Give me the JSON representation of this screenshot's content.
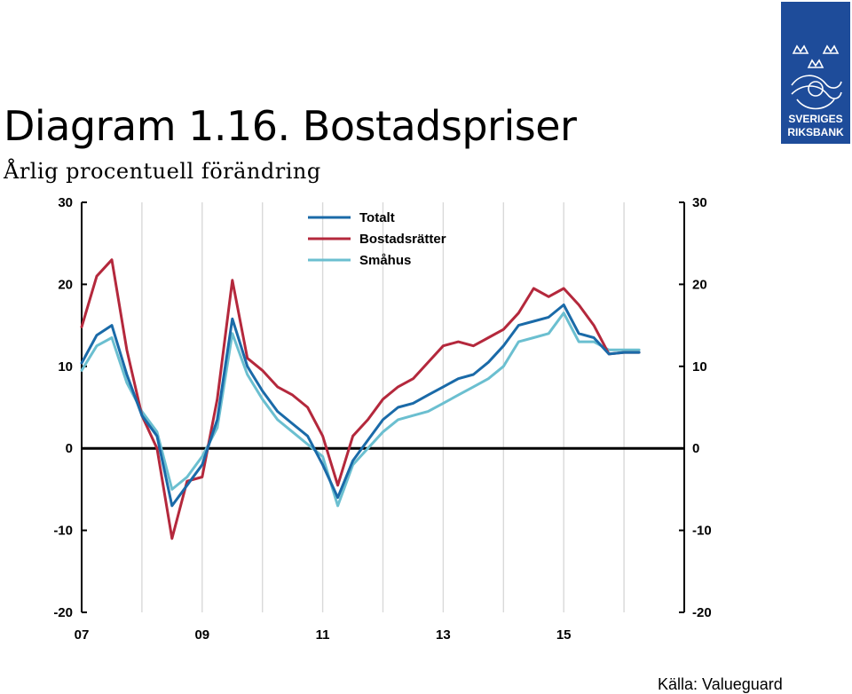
{
  "header": {
    "title": "Diagram 1.16. Bostadspriser",
    "subtitle": "Årlig procentuell förändring"
  },
  "logo": {
    "line1": "SVERIGES",
    "line2": "RIKSBANK",
    "color": "#1e4c9a"
  },
  "source": "Källa: Valueguard",
  "chart_data": {
    "type": "line",
    "xlim": [
      2007,
      2017
    ],
    "ylim": [
      -20,
      30
    ],
    "x_ticks": [
      {
        "value": 2007,
        "label": "07"
      },
      {
        "value": 2009,
        "label": "09"
      },
      {
        "value": 2011,
        "label": "11"
      },
      {
        "value": 2013,
        "label": "13"
      },
      {
        "value": 2015,
        "label": "15"
      }
    ],
    "y_ticks_left": [
      "30",
      "20",
      "10",
      "0",
      "-10",
      "-20"
    ],
    "y_ticks_right": [
      "30",
      "20",
      "10",
      "0",
      "-10",
      "-20"
    ],
    "y_tick_values": [
      30,
      20,
      10,
      0,
      -10,
      -20
    ],
    "grid": "vertical",
    "legend_position": "top-center",
    "series": [
      {
        "name": "Totalt",
        "color": "#1a6aa8",
        "x": [
          2007.0,
          2007.25,
          2007.5,
          2007.75,
          2008.0,
          2008.25,
          2008.5,
          2008.75,
          2009.0,
          2009.25,
          2009.5,
          2009.75,
          2010.0,
          2010.25,
          2010.5,
          2010.75,
          2011.0,
          2011.25,
          2011.5,
          2011.75,
          2012.0,
          2012.25,
          2012.5,
          2012.75,
          2013.0,
          2013.25,
          2013.5,
          2013.75,
          2014.0,
          2014.25,
          2014.5,
          2014.75,
          2015.0,
          2015.25,
          2015.5,
          2015.75,
          2016.0,
          2016.25
        ],
        "values": [
          10.4,
          13.8,
          15.0,
          9.0,
          4.0,
          1.5,
          -7.0,
          -4.5,
          -2.0,
          3.5,
          15.8,
          10.0,
          7.0,
          4.5,
          3.0,
          1.5,
          -2.0,
          -6.0,
          -1.5,
          1.0,
          3.5,
          5.0,
          5.5,
          6.5,
          7.5,
          8.5,
          9.0,
          10.5,
          12.5,
          15.0,
          15.5,
          16.0,
          17.5,
          14.0,
          13.5,
          11.5,
          11.7,
          11.7
        ]
      },
      {
        "name": "Bostadsrätter",
        "color": "#b4283c",
        "x": [
          2007.0,
          2007.25,
          2007.5,
          2007.75,
          2008.0,
          2008.25,
          2008.5,
          2008.75,
          2009.0,
          2009.25,
          2009.5,
          2009.75,
          2010.0,
          2010.25,
          2010.5,
          2010.75,
          2011.0,
          2011.25,
          2011.5,
          2011.75,
          2012.0,
          2012.25,
          2012.5,
          2012.75,
          2013.0,
          2013.25,
          2013.5,
          2013.75,
          2014.0,
          2014.25,
          2014.5,
          2014.75,
          2015.0,
          2015.25,
          2015.5,
          2015.75,
          2016.0,
          2016.25
        ],
        "values": [
          14.8,
          21.0,
          23.0,
          12.0,
          4.0,
          0.0,
          -11.0,
          -4.0,
          -3.5,
          6.0,
          20.5,
          11.0,
          9.5,
          7.5,
          6.5,
          5.0,
          1.5,
          -4.5,
          1.5,
          3.5,
          6.0,
          7.5,
          8.5,
          10.5,
          12.5,
          13.0,
          12.5,
          13.5,
          14.5,
          16.5,
          19.5,
          18.5,
          19.5,
          17.5,
          15.0,
          11.5,
          11.7,
          11.7
        ]
      },
      {
        "name": "Småhus",
        "color": "#6bbfd0",
        "x": [
          2007.0,
          2007.25,
          2007.5,
          2007.75,
          2008.0,
          2008.25,
          2008.5,
          2008.75,
          2009.0,
          2009.25,
          2009.5,
          2009.75,
          2010.0,
          2010.25,
          2010.5,
          2010.75,
          2011.0,
          2011.25,
          2011.5,
          2011.75,
          2012.0,
          2012.25,
          2012.5,
          2012.75,
          2013.0,
          2013.25,
          2013.5,
          2013.75,
          2014.0,
          2014.25,
          2014.5,
          2014.75,
          2015.0,
          2015.25,
          2015.5,
          2015.75,
          2016.0,
          2016.25
        ],
        "values": [
          9.5,
          12.5,
          13.5,
          8.0,
          4.5,
          2.0,
          -5.0,
          -3.5,
          -1.0,
          2.5,
          14.0,
          9.0,
          6.0,
          3.5,
          2.0,
          0.5,
          -1.0,
          -7.0,
          -2.0,
          0.0,
          2.0,
          3.5,
          4.0,
          4.5,
          5.5,
          6.5,
          7.5,
          8.5,
          10.0,
          13.0,
          13.5,
          14.0,
          16.5,
          13.0,
          13.0,
          12.0,
          12.0,
          12.0
        ]
      }
    ]
  }
}
